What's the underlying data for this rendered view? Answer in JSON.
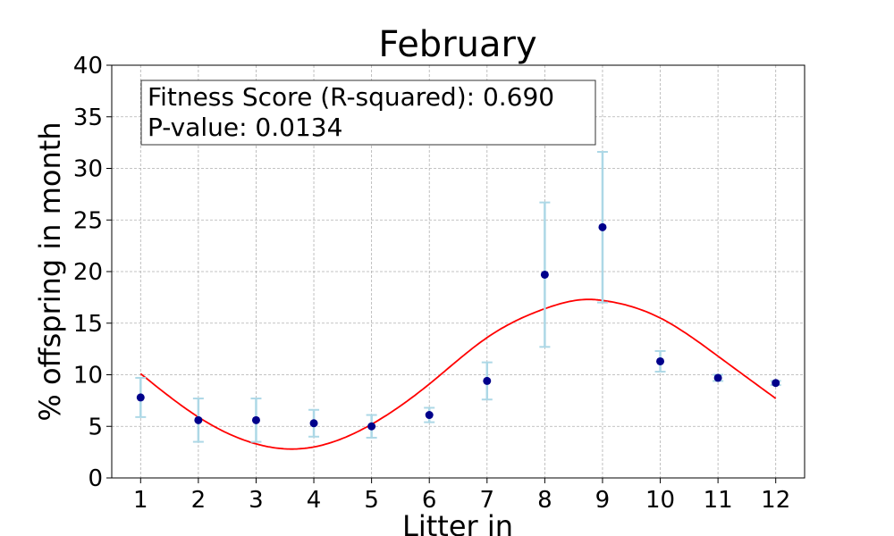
{
  "chart_data": {
    "type": "scatter",
    "title": "February",
    "xlabel": "Litter in",
    "ylabel": "% offspring in month",
    "xlim": [
      0.5,
      12.5
    ],
    "ylim": [
      0,
      40
    ],
    "xticks": [
      1,
      2,
      3,
      4,
      5,
      6,
      7,
      8,
      9,
      10,
      11,
      12
    ],
    "yticks": [
      0,
      5,
      10,
      15,
      20,
      25,
      30,
      35,
      40
    ],
    "grid": true,
    "annotation": {
      "line1": "Fitness Score (R-squared): 0.690",
      "line2": "P-value: 0.0134",
      "placement": "top-left"
    },
    "points": {
      "x": [
        1,
        2,
        3,
        4,
        5,
        6,
        7,
        8,
        9,
        10,
        11,
        12
      ],
      "y": [
        7.8,
        5.6,
        5.6,
        5.3,
        5.0,
        6.1,
        9.4,
        19.7,
        24.3,
        11.3,
        9.7,
        9.2
      ],
      "err": [
        1.9,
        2.1,
        2.1,
        1.3,
        1.1,
        0.7,
        1.8,
        7.0,
        7.3,
        1.0,
        0.3,
        0.2
      ],
      "color": "#00008b",
      "errcolor": "#add8e6"
    },
    "fit_curve": {
      "x": [
        1,
        2,
        3,
        3.6,
        4,
        5,
        6,
        7,
        8,
        8.8,
        9,
        10,
        11,
        12
      ],
      "y": [
        10.1,
        5.9,
        3.3,
        2.8,
        3.0,
        5.2,
        9.1,
        13.6,
        16.4,
        17.3,
        17.2,
        15.5,
        11.8,
        7.7
      ],
      "color": "#ff0000"
    }
  }
}
